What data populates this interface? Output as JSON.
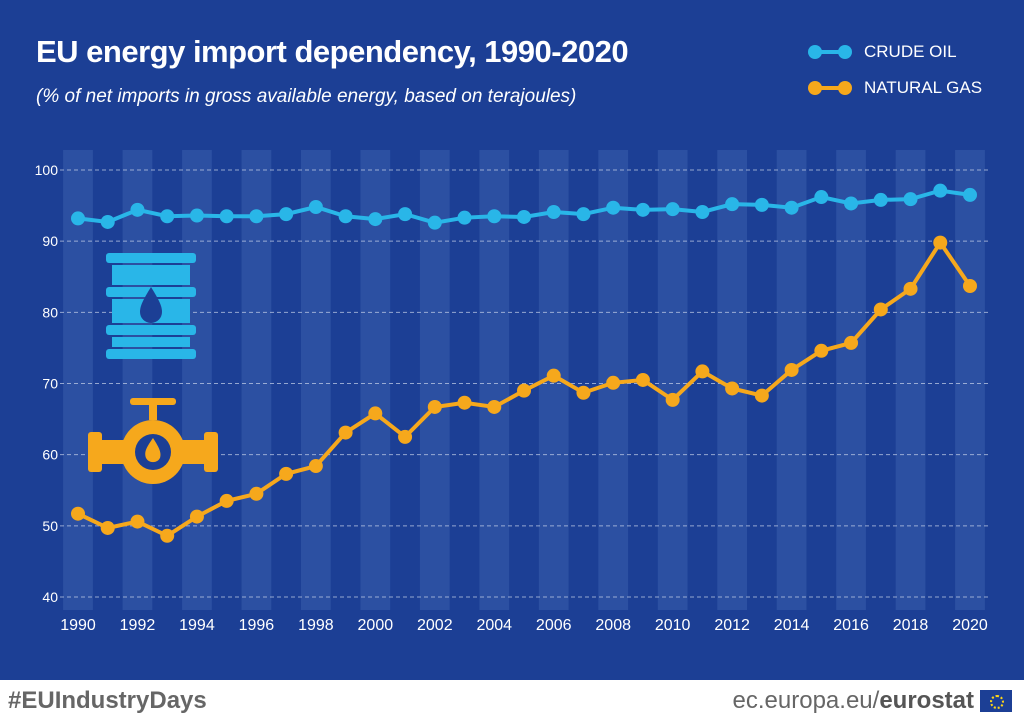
{
  "header": {
    "title": "EU energy import dependency, 1990-2020",
    "subtitle": "(% of net imports in gross available energy, based on terajoules)"
  },
  "footer": {
    "hashtag": "#EUIndustryDays",
    "site": "ec.europa.eu/",
    "brand": "eurostat"
  },
  "icons": [
    "oil-barrel-icon",
    "gas-valve-icon",
    "eu-flag-icon"
  ],
  "colors": {
    "background": "#1c3f95",
    "stripe": "#2c50a2",
    "crude_oil": "#29b6e8",
    "natural_gas": "#f6a81c"
  },
  "chart_data": {
    "type": "line",
    "title": "EU energy import dependency, 1990-2020",
    "subtitle": "(% of net imports in gross available energy, based on terajoules)",
    "xlabel": "",
    "ylabel": "",
    "x": [
      1990,
      1991,
      1992,
      1993,
      1994,
      1995,
      1996,
      1997,
      1998,
      1999,
      2000,
      2001,
      2002,
      2003,
      2004,
      2005,
      2006,
      2007,
      2008,
      2009,
      2010,
      2011,
      2012,
      2013,
      2014,
      2015,
      2016,
      2017,
      2018,
      2019,
      2020
    ],
    "xticks": [
      "1990",
      "1992",
      "1994",
      "1996",
      "1998",
      "2000",
      "2002",
      "2004",
      "2006",
      "2008",
      "2010",
      "2012",
      "2014",
      "2016",
      "2018",
      "2020"
    ],
    "yticks": [
      "40",
      "50",
      "60",
      "70",
      "80",
      "90",
      "100"
    ],
    "ylim": [
      40,
      100
    ],
    "grid": true,
    "legend_position": "top-right",
    "series": [
      {
        "name": "CRUDE OIL",
        "color": "#29b6e8",
        "values": [
          93.2,
          92.7,
          94.4,
          93.5,
          93.6,
          93.5,
          93.5,
          93.8,
          94.8,
          93.5,
          93.1,
          93.8,
          92.6,
          93.3,
          93.5,
          93.4,
          94.1,
          93.8,
          94.7,
          94.4,
          94.5,
          94.1,
          95.2,
          95.1,
          94.7,
          96.2,
          95.3,
          95.8,
          95.9,
          97.1,
          96.5
        ]
      },
      {
        "name": "NATURAL GAS",
        "color": "#f6a81c",
        "values": [
          51.7,
          49.7,
          50.6,
          48.6,
          51.3,
          53.5,
          54.5,
          57.3,
          58.4,
          63.1,
          65.8,
          62.5,
          66.7,
          67.3,
          66.7,
          69.0,
          71.1,
          68.7,
          70.1,
          70.5,
          67.7,
          71.7,
          69.3,
          68.3,
          71.9,
          74.6,
          75.7,
          80.4,
          83.3,
          89.8,
          83.7
        ]
      }
    ]
  }
}
